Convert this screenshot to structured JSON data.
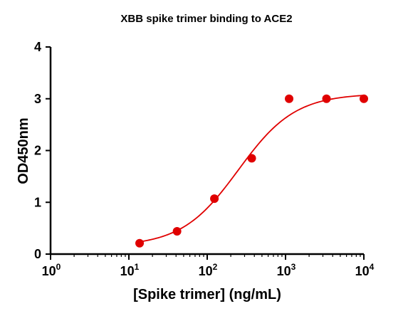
{
  "chart_data": {
    "type": "scatter",
    "title": "XBB spike trimer binding to ACE2",
    "xlabel": "[Spike trimer] (ng/mL)",
    "ylabel": "OD450nm",
    "x_scale": "log",
    "xlim": [
      1,
      10000
    ],
    "ylim": [
      0,
      4
    ],
    "x_ticks": [
      {
        "base": "10",
        "exp": "0",
        "value": 1
      },
      {
        "base": "10",
        "exp": "1",
        "value": 10
      },
      {
        "base": "10",
        "exp": "2",
        "value": 100
      },
      {
        "base": "10",
        "exp": "3",
        "value": 1000
      },
      {
        "base": "10",
        "exp": "4",
        "value": 10000
      }
    ],
    "y_ticks": [
      "0",
      "1",
      "2",
      "3",
      "4"
    ],
    "grid": false,
    "colors": {
      "series": "#e00000",
      "axis": "#000000"
    },
    "series": [
      {
        "x": [
          13.7,
          41.2,
          123.5,
          370.4,
          1111,
          3333,
          10000
        ],
        "y": [
          0.21,
          0.44,
          1.07,
          1.85,
          3.0,
          3.0,
          3.0
        ]
      }
    ],
    "fit": {
      "type": "4PL",
      "bottom": 0.15,
      "top": 3.1,
      "ec50": 250,
      "hill": 1.2
    }
  }
}
